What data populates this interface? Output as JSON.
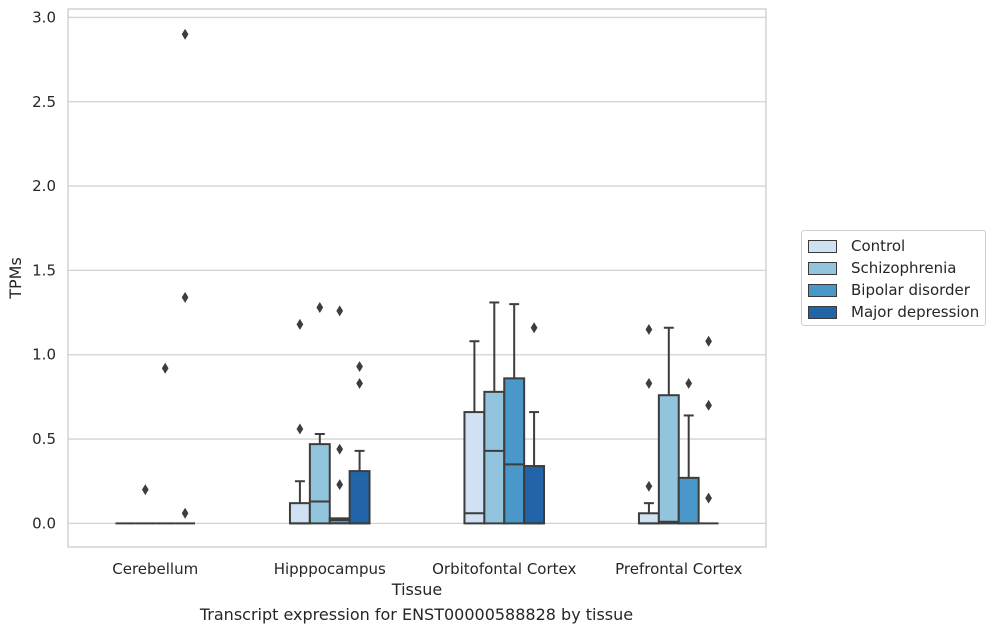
{
  "chart_data": {
    "type": "box",
    "title": "Transcript expression for ENST00000588828 by tissue",
    "xlabel": "Tissue",
    "ylabel": "TPMs",
    "ylim": [
      -0.14,
      3.05
    ],
    "yticks": [
      "0.0",
      "0.5",
      "1.0",
      "1.5",
      "2.0",
      "2.5",
      "3.0"
    ],
    "ytick_values": [
      0,
      0.5,
      1.0,
      1.5,
      2.0,
      2.5,
      3.0
    ],
    "grid": "horizontal",
    "legend_position": "right",
    "categories": [
      "Cerebellum",
      "Hipppocampus",
      "Orbitofontal Cortex",
      "Prefrontal Cortex"
    ],
    "series": [
      {
        "name": "Control",
        "color": "#cfe1f2",
        "boxes": [
          {
            "q1": 0,
            "median": 0,
            "q3": 0,
            "whisker_low": 0,
            "whisker_high": 0,
            "outliers": []
          },
          {
            "q1": 0,
            "median": 0,
            "q3": 0.12,
            "whisker_low": 0,
            "whisker_high": 0.25,
            "outliers": [
              0.56,
              1.18
            ]
          },
          {
            "q1": 0,
            "median": 0.06,
            "q3": 0.66,
            "whisker_low": 0,
            "whisker_high": 1.08,
            "outliers": []
          },
          {
            "q1": 0,
            "median": 0,
            "q3": 0.06,
            "whisker_low": 0,
            "whisker_high": 0.12,
            "outliers": [
              0.22,
              0.83,
              1.15
            ]
          }
        ]
      },
      {
        "name": "Schizophrenia",
        "color": "#93c4de",
        "boxes": [
          {
            "q1": 0,
            "median": 0,
            "q3": 0,
            "whisker_low": 0,
            "whisker_high": 0,
            "outliers": [
              0.2
            ]
          },
          {
            "q1": 0,
            "median": 0.13,
            "q3": 0.47,
            "whisker_low": 0,
            "whisker_high": 0.53,
            "outliers": [
              1.28
            ]
          },
          {
            "q1": 0,
            "median": 0.43,
            "q3": 0.78,
            "whisker_low": 0,
            "whisker_high": 1.31,
            "outliers": []
          },
          {
            "q1": 0,
            "median": 0.01,
            "q3": 0.76,
            "whisker_low": 0,
            "whisker_high": 1.16,
            "outliers": []
          }
        ]
      },
      {
        "name": "Bipolar disorder",
        "color": "#4a98c9",
        "boxes": [
          {
            "q1": 0,
            "median": 0,
            "q3": 0,
            "whisker_low": 0,
            "whisker_high": 0,
            "outliers": [
              0.92
            ]
          },
          {
            "q1": 0,
            "median": 0.02,
            "q3": 0.03,
            "whisker_low": 0,
            "whisker_high": 0.03,
            "outliers": [
              0.23,
              0.44,
              1.26
            ]
          },
          {
            "q1": 0,
            "median": 0.35,
            "q3": 0.86,
            "whisker_low": 0,
            "whisker_high": 1.3,
            "outliers": []
          },
          {
            "q1": 0,
            "median": 0,
            "q3": 0.27,
            "whisker_low": 0,
            "whisker_high": 0.64,
            "outliers": [
              0.83
            ]
          }
        ]
      },
      {
        "name": "Major depression",
        "color": "#2164a8",
        "boxes": [
          {
            "q1": 0,
            "median": 0,
            "q3": 0,
            "whisker_low": 0,
            "whisker_high": 0,
            "outliers": [
              0.06,
              1.34,
              2.9
            ]
          },
          {
            "q1": 0,
            "median": 0,
            "q3": 0.31,
            "whisker_low": 0,
            "whisker_high": 0.43,
            "outliers": [
              0.83,
              0.93
            ]
          },
          {
            "q1": 0,
            "median": 0,
            "q3": 0.34,
            "whisker_low": 0,
            "whisker_high": 0.66,
            "outliers": [
              1.16
            ]
          },
          {
            "q1": 0,
            "median": 0,
            "q3": 0,
            "whisker_low": 0,
            "whisker_high": 0,
            "outliers": [
              0.15,
              0.7,
              1.08
            ]
          }
        ]
      }
    ]
  }
}
